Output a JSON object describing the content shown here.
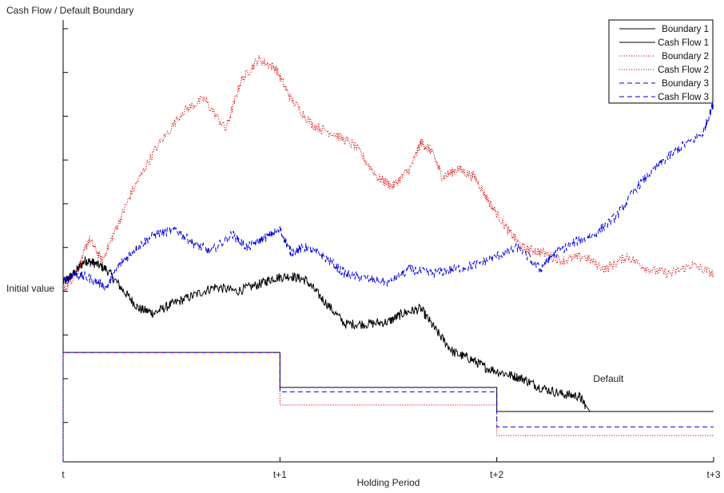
{
  "chart_data": {
    "type": "line",
    "ylabel": "Cash Flow / Default Boundary",
    "xlabel": "Holding Period",
    "y_tick_label": {
      "value": 0,
      "label": "Initial value"
    },
    "x_ticks": [
      {
        "value": 0,
        "label": "t"
      },
      {
        "value": 1,
        "label": "t+1"
      },
      {
        "value": 2,
        "label": "t+2"
      },
      {
        "value": 3,
        "label": "t+3"
      }
    ],
    "xlim": [
      0,
      3
    ],
    "ylim": [
      -3.9,
      6.2
    ],
    "annotation": {
      "text": "Default",
      "x": 2.43,
      "y": -2.0
    },
    "legend_position": "top-right",
    "series": [
      {
        "name": "Boundary 1",
        "kind": "boundary",
        "color": "#000000",
        "dash": "solid",
        "steps": [
          {
            "x0": 0,
            "x1": 1,
            "y": -1.4
          },
          {
            "x0": 1,
            "x1": 2,
            "y": -2.2
          },
          {
            "x0": 2,
            "x1": 3,
            "y": -2.75
          }
        ]
      },
      {
        "name": "Cash Flow 1",
        "kind": "cashflow",
        "color": "#000000",
        "dash": "solid",
        "x": [
          0,
          0.05,
          0.1,
          0.14,
          0.2,
          0.28,
          0.35,
          0.42,
          0.5,
          0.6,
          0.7,
          0.8,
          0.9,
          0.97,
          1.05,
          1.12,
          1.2,
          1.3,
          1.4,
          1.5,
          1.57,
          1.65,
          1.72,
          1.8,
          1.88,
          1.95,
          2.05,
          2.12,
          2.2,
          2.3,
          2.38,
          2.43
        ],
        "y": [
          0.2,
          0.4,
          0.7,
          0.65,
          0.5,
          0.0,
          -0.4,
          -0.5,
          -0.3,
          -0.1,
          0.1,
          0.0,
          0.15,
          0.3,
          0.35,
          0.25,
          -0.2,
          -0.75,
          -0.75,
          -0.7,
          -0.5,
          -0.4,
          -0.9,
          -1.4,
          -1.55,
          -1.75,
          -1.9,
          -2.0,
          -2.2,
          -2.35,
          -2.4,
          -2.75
        ]
      },
      {
        "name": "Boundary 2",
        "kind": "boundary",
        "color": "#dd0000",
        "dash": "dotted",
        "steps": [
          {
            "x0": 0,
            "x1": 1,
            "y": -1.4
          },
          {
            "x0": 1,
            "x1": 2,
            "y": -2.6
          },
          {
            "x0": 2,
            "x1": 3,
            "y": -3.3
          }
        ]
      },
      {
        "name": "Cash Flow 2",
        "kind": "cashflow",
        "color": "#dd0000",
        "dash": "dotted",
        "x": [
          0,
          0.07,
          0.12,
          0.18,
          0.25,
          0.32,
          0.42,
          0.55,
          0.65,
          0.75,
          0.82,
          0.9,
          0.98,
          1.05,
          1.15,
          1.25,
          1.35,
          1.45,
          1.52,
          1.6,
          1.65,
          1.7,
          1.75,
          1.82,
          1.9,
          1.97,
          2.05,
          2.12,
          2.2,
          2.3,
          2.4,
          2.5,
          2.6,
          2.7,
          2.8,
          2.9,
          3.0
        ],
        "y": [
          0.0,
          0.5,
          1.2,
          0.7,
          1.5,
          2.3,
          3.2,
          4.1,
          4.4,
          3.7,
          4.8,
          5.3,
          5.1,
          4.4,
          3.8,
          3.6,
          3.3,
          2.6,
          2.4,
          2.8,
          3.4,
          3.2,
          2.6,
          2.8,
          2.6,
          2.0,
          1.4,
          1.0,
          0.9,
          0.7,
          0.8,
          0.5,
          0.8,
          0.5,
          0.4,
          0.6,
          0.4
        ]
      },
      {
        "name": "Boundary 3",
        "kind": "boundary",
        "color": "#0000dd",
        "dash": "dashed",
        "steps": [
          {
            "x0": 0,
            "x1": 1,
            "y": -1.4
          },
          {
            "x0": 1,
            "x1": 2,
            "y": -2.3
          },
          {
            "x0": 2,
            "x1": 3,
            "y": -3.1
          }
        ]
      },
      {
        "name": "Cash Flow 3",
        "kind": "cashflow",
        "color": "#0000dd",
        "dash": "dashed",
        "x": [
          0,
          0.05,
          0.12,
          0.2,
          0.26,
          0.34,
          0.42,
          0.52,
          0.6,
          0.68,
          0.78,
          0.85,
          0.92,
          1.0,
          1.05,
          1.12,
          1.2,
          1.3,
          1.38,
          1.5,
          1.6,
          1.7,
          1.8,
          1.9,
          2.0,
          2.1,
          2.2,
          2.25,
          2.35,
          2.45,
          2.55,
          2.65,
          2.75,
          2.85,
          2.95,
          3.0
        ],
        "y": [
          0.2,
          0.4,
          0.3,
          0.1,
          0.6,
          1.0,
          1.3,
          1.4,
          1.1,
          0.9,
          1.3,
          1.0,
          1.2,
          1.4,
          0.9,
          1.0,
          0.8,
          0.4,
          0.3,
          0.2,
          0.5,
          0.4,
          0.5,
          0.6,
          0.8,
          1.0,
          0.5,
          0.8,
          1.1,
          1.3,
          1.7,
          2.4,
          2.9,
          3.3,
          3.6,
          4.3
        ]
      }
    ]
  }
}
